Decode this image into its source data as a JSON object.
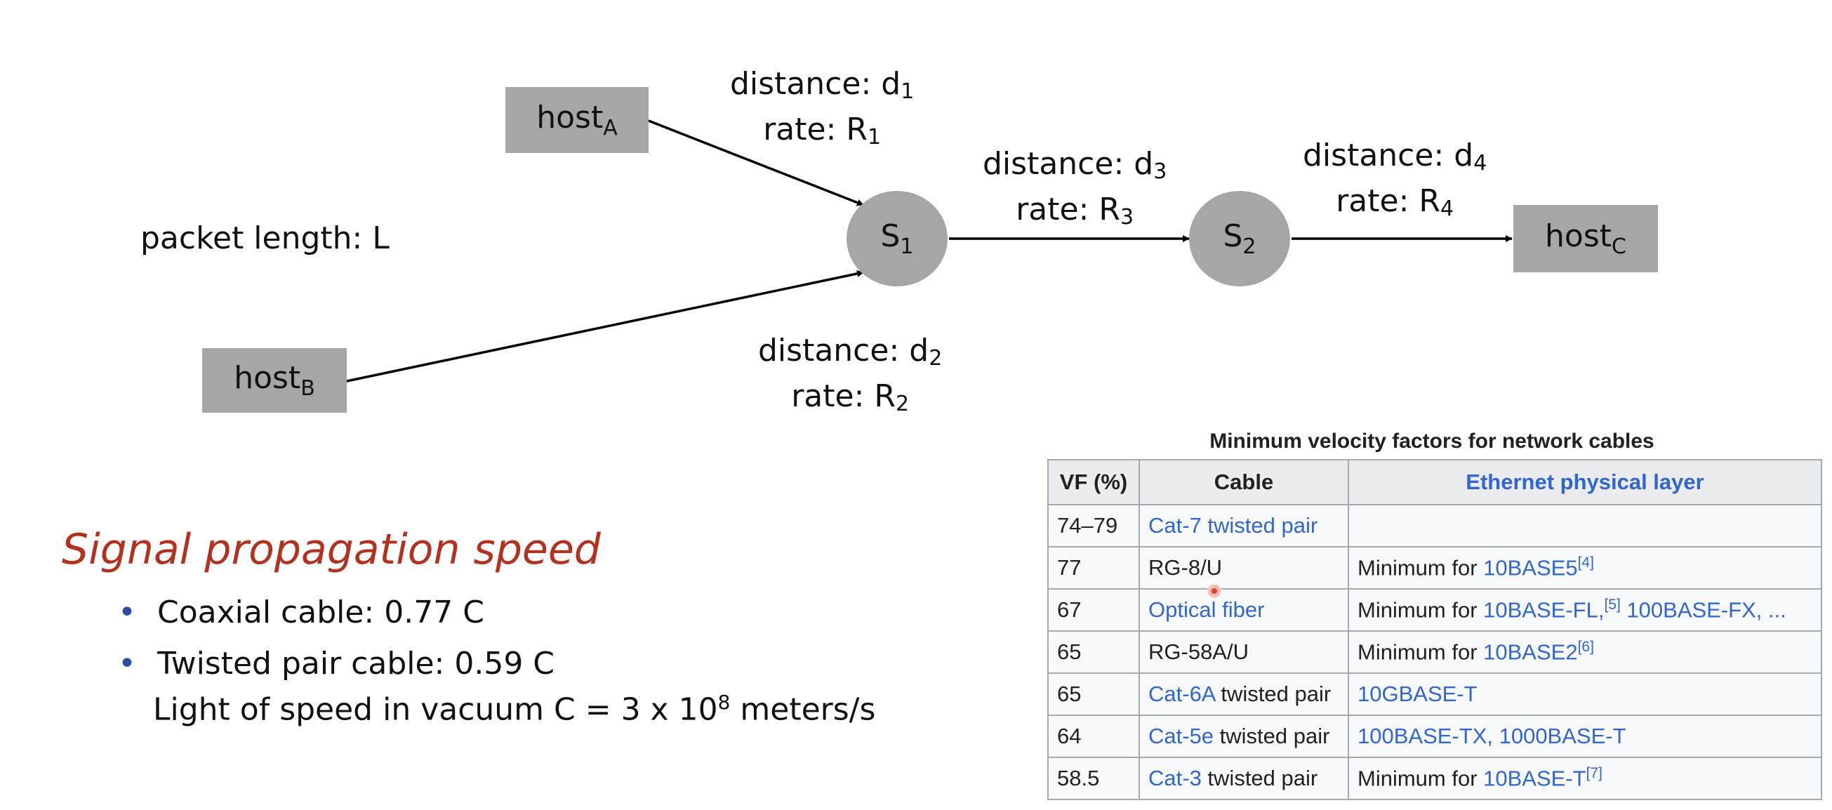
{
  "diagram": {
    "hosts": {
      "a": {
        "base": "host",
        "sub": "A"
      },
      "b": {
        "base": "host",
        "sub": "B"
      },
      "c": {
        "base": "host",
        "sub": "C"
      }
    },
    "switches": {
      "s1": {
        "base": "S",
        "sub": "1"
      },
      "s2": {
        "base": "S",
        "sub": "2"
      }
    },
    "packet_length": "packet length: L",
    "links": {
      "l1": {
        "distance_prefix": "distance: d",
        "distance_sub": "1",
        "rate_prefix": "rate: R",
        "rate_sub": "1"
      },
      "l2": {
        "distance_prefix": "distance: d",
        "distance_sub": "2",
        "rate_prefix": "rate: R",
        "rate_sub": "2"
      },
      "l3": {
        "distance_prefix": "distance: d",
        "distance_sub": "3",
        "rate_prefix": "rate: R",
        "rate_sub": "3"
      },
      "l4": {
        "distance_prefix": "distance: d",
        "distance_sub": "4",
        "rate_prefix": "rate: R",
        "rate_sub": "4"
      }
    },
    "colors": {
      "node_fill": "#a6a6a6",
      "line": "#000000"
    }
  },
  "speed": {
    "heading": "Signal propagation speed",
    "bullets": [
      "Coaxial cable: 0.77 C",
      "Twisted pair cable: 0.59 C"
    ],
    "light_prefix": "Light of speed in vacuum C = 3 x 10",
    "light_exp": "8",
    "light_suffix": " meters/s",
    "heading_color": "#b3321f"
  },
  "table": {
    "caption": "Minimum velocity factors for network cables",
    "headers": [
      "VF (%)",
      "Cable",
      "Ethernet physical layer"
    ],
    "rows": [
      {
        "vf": "74–79",
        "cable_link": "Cat-7 twisted pair",
        "cable_rest": "",
        "phy_pre": "",
        "phy_link": "",
        "phy_ref": "",
        "phy_more": ""
      },
      {
        "vf": "77",
        "cable_link": "",
        "cable_rest": "RG-8/U",
        "phy_pre": "Minimum for ",
        "phy_link": "10BASE5",
        "phy_ref": "[4]",
        "phy_more": ""
      },
      {
        "vf": "67",
        "cable_link": "Optical fiber",
        "cable_rest": "",
        "phy_pre": "Minimum for ",
        "phy_link": "10BASE-FL,",
        "phy_ref": "[5]",
        "phy_more": " 100BASE-FX, ..."
      },
      {
        "vf": "65",
        "cable_link": "",
        "cable_rest": "RG-58A/U",
        "phy_pre": "Minimum for ",
        "phy_link": "10BASE2",
        "phy_ref": "[6]",
        "phy_more": ""
      },
      {
        "vf": "65",
        "cable_link": "Cat-6A",
        "cable_rest": " twisted pair",
        "phy_pre": "",
        "phy_link": "10GBASE-T",
        "phy_ref": "",
        "phy_more": ""
      },
      {
        "vf": "64",
        "cable_link": "Cat-5e",
        "cable_rest": " twisted pair",
        "phy_pre": "",
        "phy_link": "100BASE-TX, 1000BASE-T",
        "phy_ref": "",
        "phy_more": ""
      },
      {
        "vf": "58.5",
        "cable_link": "Cat-3",
        "cable_rest": " twisted pair",
        "phy_pre": "Minimum for ",
        "phy_link": "10BASE-T",
        "phy_ref": "[7]",
        "phy_more": ""
      }
    ],
    "link_color": "#3366cc"
  }
}
